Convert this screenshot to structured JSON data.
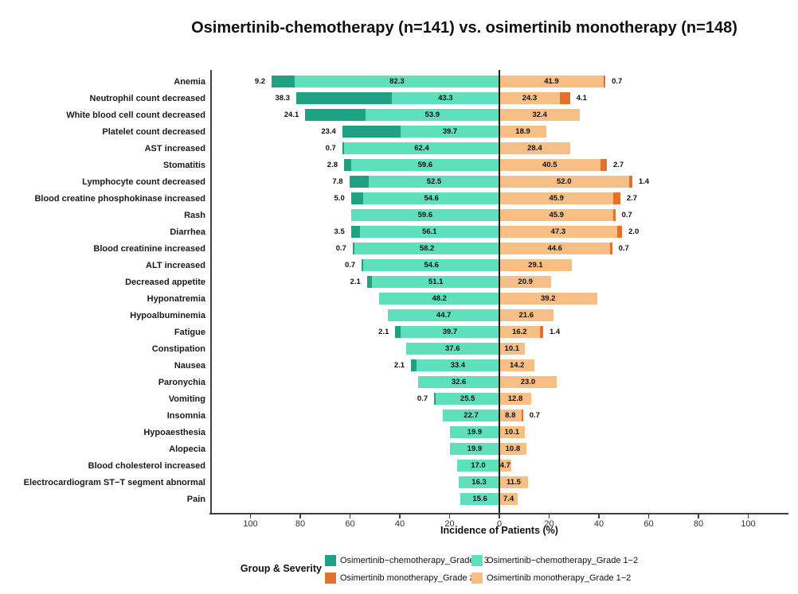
{
  "title": "Osimertinib-chemotherapy (n=141) vs. osimertinib monotherapy (n=148)",
  "axis": {
    "label": "Incidence of Patients (%)",
    "tick_values": [
      100,
      80,
      60,
      40,
      20,
      0,
      20,
      40,
      60,
      80,
      100
    ]
  },
  "legend": {
    "group_label": "Group & Severity",
    "entries": [
      {
        "id": "chemo-grade3",
        "label": "Osimertinib−chemotherapy_Grade ≥ 3",
        "color": "#1fa184"
      },
      {
        "id": "chemo-grade12",
        "label": "Osimertinib−chemotherapy_Grade 1−2",
        "color": "#5ee0bc"
      },
      {
        "id": "mono-grade3",
        "label": "Osimertinib monotherapy_Grade ≥ 3",
        "color": "#e6702a"
      },
      {
        "id": "mono-grade12",
        "label": "Osimertinib monotherapy_Grade 1−2",
        "color": "#f7be85"
      }
    ]
  },
  "chart_data": {
    "type": "bar",
    "variant": "diverging-stacked-horizontal",
    "title": "Osimertinib-chemotherapy (n=141) vs. osimertinib monotherapy (n=148)",
    "xlabel": "Incidence of Patients (%)",
    "xlim": [
      -116,
      116
    ],
    "grid": false,
    "legend_position": "bottom",
    "categories": [
      "Anemia",
      "Neutrophil count decreased",
      "White blood cell count decreased",
      "Platelet count decreased",
      "AST increased",
      "Stomatitis",
      "Lymphocyte count decreased",
      "Blood creatine phosphokinase increased",
      "Rash",
      "Diarrhea",
      "Blood creatinine increased",
      "ALT increased",
      "Decreased appetite",
      "Hyponatremia",
      "Hypoalbuminemia",
      "Fatigue",
      "Constipation",
      "Nausea",
      "Paronychia",
      "Vomiting",
      "Insomnia",
      "Hypoaesthesia",
      "Alopecia",
      "Blood cholesterol increased",
      "Electrocardiogram ST−T segment abnormal",
      "Pain"
    ],
    "series": [
      {
        "name": "Osimertinib−chemotherapy_Grade ≥ 3",
        "side": "left",
        "stack_order": "outer",
        "color": "#1fa184",
        "values": [
          9.2,
          38.3,
          24.1,
          23.4,
          0.7,
          2.8,
          7.8,
          5.0,
          null,
          3.5,
          0.7,
          0.7,
          2.1,
          null,
          null,
          2.1,
          null,
          2.1,
          null,
          0.7,
          null,
          null,
          null,
          null,
          null,
          null
        ]
      },
      {
        "name": "Osimertinib−chemotherapy_Grade 1−2",
        "side": "left",
        "stack_order": "inner",
        "color": "#5ee0bc",
        "values": [
          82.3,
          43.3,
          53.9,
          39.7,
          62.4,
          59.6,
          52.5,
          54.6,
          59.6,
          56.1,
          58.2,
          54.6,
          51.1,
          48.2,
          44.7,
          39.7,
          37.6,
          33.4,
          32.6,
          25.5,
          22.7,
          19.9,
          19.9,
          17.0,
          16.3,
          15.6
        ]
      },
      {
        "name": "Osimertinib monotherapy_Grade ≥ 3",
        "side": "right",
        "stack_order": "outer",
        "color": "#e6702a",
        "values": [
          0.7,
          4.1,
          null,
          null,
          null,
          2.7,
          1.4,
          2.7,
          0.7,
          2.0,
          0.7,
          null,
          null,
          null,
          null,
          1.4,
          null,
          null,
          null,
          null,
          0.7,
          null,
          null,
          null,
          null,
          null
        ]
      },
      {
        "name": "Osimertinib monotherapy_Grade 1−2",
        "side": "right",
        "stack_order": "inner",
        "color": "#f7be85",
        "values": [
          41.9,
          24.3,
          32.4,
          18.9,
          28.4,
          40.5,
          52.0,
          45.9,
          45.9,
          47.3,
          44.6,
          29.1,
          20.9,
          39.2,
          21.6,
          16.2,
          10.1,
          14.2,
          23.0,
          12.8,
          8.8,
          10.1,
          10.8,
          4.7,
          11.5,
          7.4
        ]
      }
    ]
  }
}
